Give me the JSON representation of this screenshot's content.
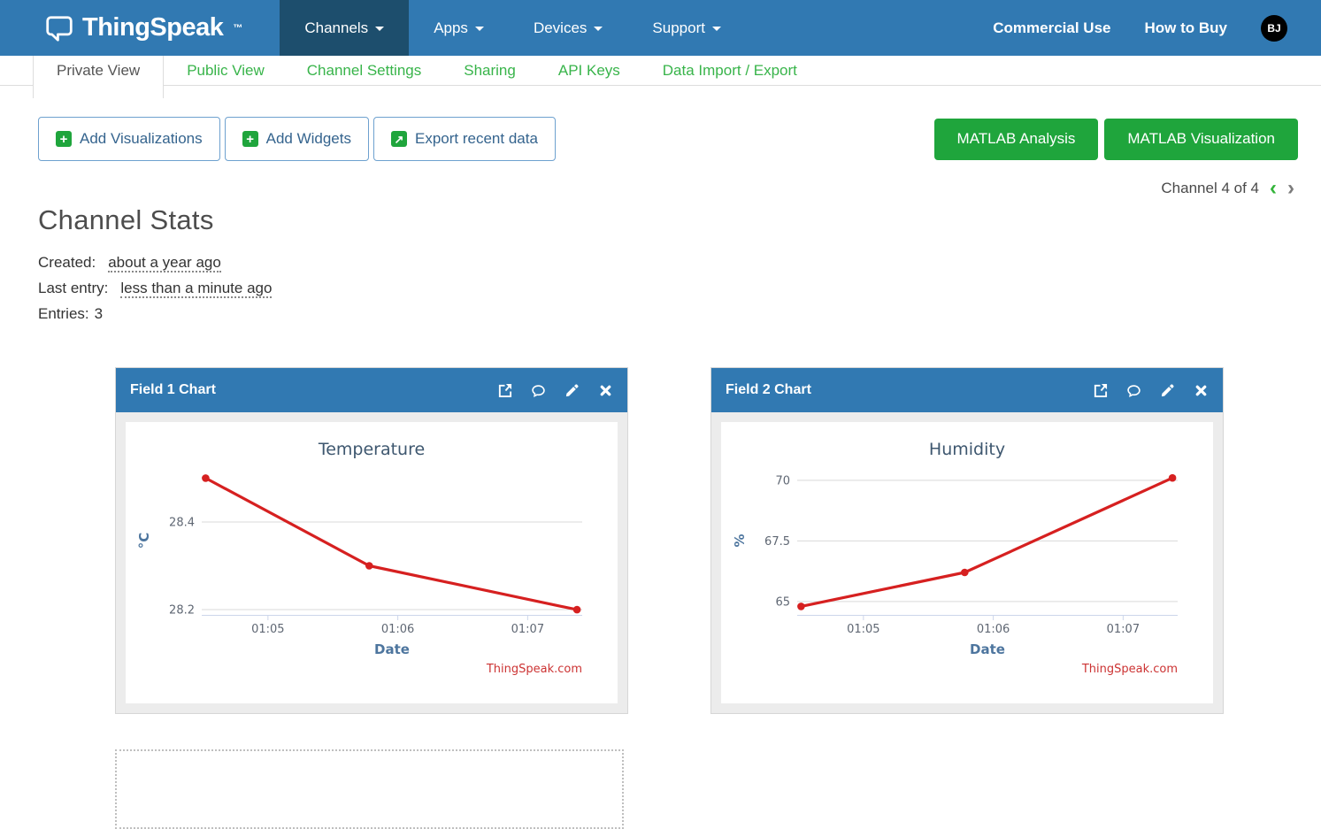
{
  "colors": {
    "navbar_blue": "#3179b2",
    "navbar_active_blue": "#1d4e6d",
    "green_button": "#1fa53c",
    "green_link": "#38b44a",
    "chart_line_red": "#d62020",
    "credits_red": "#cc3333"
  },
  "navbar": {
    "brand": "ThingSpeak",
    "brand_tm": "™",
    "items": [
      {
        "label": "Channels",
        "active": true
      },
      {
        "label": "Apps",
        "active": false
      },
      {
        "label": "Devices",
        "active": false
      },
      {
        "label": "Support",
        "active": false
      }
    ],
    "right": [
      {
        "label": "Commercial Use"
      },
      {
        "label": "How to Buy"
      }
    ],
    "avatar_initials": "BJ"
  },
  "tabs": {
    "items": [
      {
        "label": "Private View",
        "active": true
      },
      {
        "label": "Public View",
        "active": false
      },
      {
        "label": "Channel Settings",
        "active": false
      },
      {
        "label": "Sharing",
        "active": false
      },
      {
        "label": "API Keys",
        "active": false
      },
      {
        "label": "Data Import / Export",
        "active": false
      }
    ]
  },
  "toolbar": {
    "add_visualizations": "Add Visualizations",
    "add_widgets": "Add Widgets",
    "export_recent": "Export recent data",
    "plus_glyph": "+",
    "export_glyph": "↗",
    "matlab_analysis": "MATLAB Analysis",
    "matlab_visualization": "MATLAB Visualization"
  },
  "pager": {
    "label": "Channel 4 of 4",
    "prev_glyph": "‹",
    "next_glyph": "›"
  },
  "stats": {
    "title": "Channel Stats",
    "created_label": "Created:",
    "created_value": "about a year ago",
    "last_entry_label": "Last entry:",
    "last_entry_value": "less than a minute ago",
    "entries_label": "Entries:",
    "entries_value": "3"
  },
  "cards": [
    {
      "title": "Field 1 Chart",
      "icons": [
        "external-link-icon",
        "comment-icon",
        "edit-icon",
        "close-icon"
      ]
    },
    {
      "title": "Field 2 Chart",
      "icons": [
        "external-link-icon",
        "comment-icon",
        "edit-icon",
        "close-icon"
      ]
    }
  ],
  "chart_data": [
    {
      "type": "line",
      "title": "Temperature",
      "xlabel": "Date",
      "ylabel": "°C",
      "credits": "ThingSpeak.com",
      "color": "#d62020",
      "x_unit": "minutes after 01:00",
      "x": [
        4.52,
        5.78,
        7.38
      ],
      "y": [
        28.5,
        28.3,
        28.2
      ],
      "xlim": [
        4.49,
        7.42
      ],
      "ylim": [
        28.188,
        28.527
      ],
      "xticks": [
        {
          "v": 5,
          "label": "01:05"
        },
        {
          "v": 6,
          "label": "01:06"
        },
        {
          "v": 7,
          "label": "01:07"
        }
      ],
      "yticks": [
        {
          "v": 28.2,
          "label": "28.2"
        },
        {
          "v": 28.4,
          "label": "28.4"
        }
      ],
      "grid": true,
      "legend": "none"
    },
    {
      "type": "line",
      "title": "Humidity",
      "xlabel": "Date",
      "ylabel": "%",
      "credits": "ThingSpeak.com",
      "color": "#d62020",
      "x_unit": "minutes after 01:00",
      "x": [
        4.52,
        5.78,
        7.38
      ],
      "y": [
        64.8,
        66.2,
        70.1
      ],
      "xlim": [
        4.49,
        7.42
      ],
      "ylim": [
        64.45,
        70.58
      ],
      "xticks": [
        {
          "v": 5,
          "label": "01:05"
        },
        {
          "v": 6,
          "label": "01:06"
        },
        {
          "v": 7,
          "label": "01:07"
        }
      ],
      "yticks": [
        {
          "v": 65,
          "label": "65"
        },
        {
          "v": 67.5,
          "label": "67.5"
        },
        {
          "v": 70,
          "label": "70"
        }
      ],
      "grid": true,
      "legend": "none"
    }
  ]
}
